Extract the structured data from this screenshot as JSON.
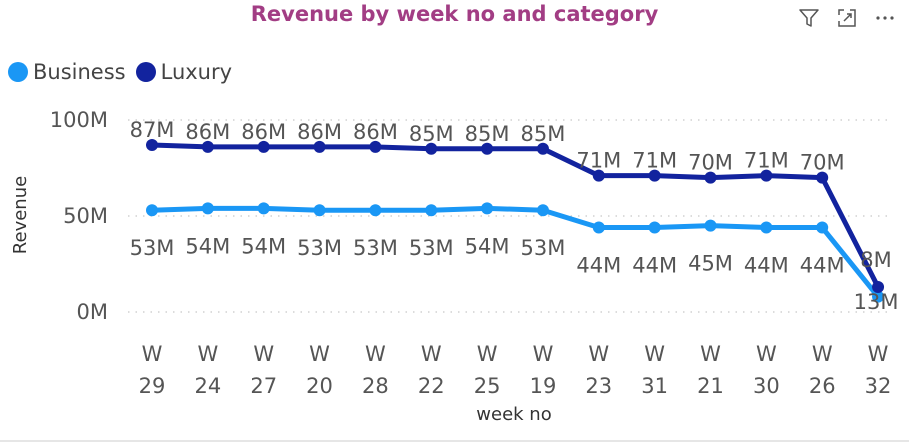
{
  "toolbar": {
    "filter_icon": "filter-icon",
    "focus_icon": "focus-mode-icon",
    "more_icon": "more-options-icon"
  },
  "colors": {
    "title": "#a23d84",
    "business": "#1a97f5",
    "luxury": "#12239e",
    "grid": "#c8c8c8"
  },
  "chart_data": {
    "type": "line",
    "title": "Revenue by week no and category",
    "xlabel": "week no",
    "ylabel": "Revenue",
    "categories": [
      "W 29",
      "W 24",
      "W 27",
      "W 20",
      "W 28",
      "W 22",
      "W 25",
      "W 19",
      "W 23",
      "W 31",
      "W 21",
      "W 30",
      "W 26",
      "W 32"
    ],
    "y_ticks": [
      "0M",
      "50M",
      "100M"
    ],
    "ylim": [
      0,
      100
    ],
    "grid": true,
    "legend_position": "top-left",
    "series": [
      {
        "name": "Business",
        "color": "#1a97f5",
        "values": [
          53,
          54,
          54,
          53,
          53,
          53,
          54,
          53,
          44,
          44,
          45,
          44,
          44,
          8
        ],
        "labels": [
          "53M",
          "54M",
          "54M",
          "53M",
          "53M",
          "53M",
          "54M",
          "53M",
          "44M",
          "44M",
          "45M",
          "44M",
          "44M",
          "8M"
        ]
      },
      {
        "name": "Luxury",
        "color": "#12239e",
        "values": [
          87,
          86,
          86,
          86,
          86,
          85,
          85,
          85,
          71,
          71,
          70,
          71,
          70,
          13
        ],
        "labels": [
          "87M",
          "86M",
          "86M",
          "86M",
          "86M",
          "85M",
          "85M",
          "85M",
          "71M",
          "71M",
          "70M",
          "71M",
          "70M",
          "13M"
        ]
      }
    ]
  }
}
